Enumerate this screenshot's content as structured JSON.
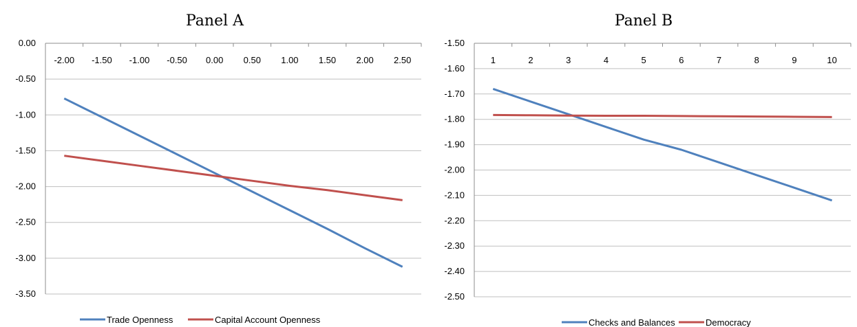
{
  "colors": {
    "blue": "#4F81BD",
    "red": "#C0504D",
    "grid": "#BFBFBF",
    "axis": "#8C8C8C"
  },
  "chart_data": [
    {
      "type": "line",
      "title": "Panel A",
      "xlabel": "",
      "ylabel": "",
      "categories": [
        "-2.00",
        "-1.50",
        "-1.00",
        "-0.50",
        "0.00",
        "0.50",
        "1.00",
        "1.50",
        "2.00",
        "2.50"
      ],
      "x": [
        -2.0,
        -1.5,
        -1.0,
        -0.5,
        0.0,
        0.5,
        1.0,
        1.5,
        2.0,
        2.5
      ],
      "y_ticks": [
        "0.00",
        "-0.50",
        "-1.00",
        "-1.50",
        "-2.00",
        "-2.50",
        "-3.00",
        "-3.50"
      ],
      "ylim": [
        -3.5,
        0.0
      ],
      "grid": true,
      "legend_position": "bottom",
      "x_axis_position": "top",
      "series": [
        {
          "name": "Trade Openness",
          "color": "#4F81BD",
          "values": [
            -0.77,
            -1.03,
            -1.29,
            -1.55,
            -1.81,
            -2.07,
            -2.33,
            -2.59,
            -2.86,
            -3.12
          ]
        },
        {
          "name": "Capital Account Openness",
          "color": "#C0504D",
          "values": [
            -1.57,
            -1.64,
            -1.71,
            -1.78,
            -1.85,
            -1.92,
            -1.99,
            -2.05,
            -2.12,
            -2.19
          ]
        }
      ]
    },
    {
      "type": "line",
      "title": "Panel B",
      "xlabel": "",
      "ylabel": "",
      "categories": [
        "1",
        "2",
        "3",
        "4",
        "5",
        "6",
        "7",
        "8",
        "9",
        "10"
      ],
      "x": [
        1,
        2,
        3,
        4,
        5,
        6,
        7,
        8,
        9,
        10
      ],
      "y_ticks": [
        "-1.50",
        "-1.60",
        "-1.70",
        "-1.80",
        "-1.90",
        "-2.00",
        "-2.10",
        "-2.20",
        "-2.30",
        "-2.40",
        "-2.50"
      ],
      "ylim": [
        -2.5,
        -1.5
      ],
      "grid": true,
      "legend_position": "bottom",
      "x_axis_position": "top",
      "series": [
        {
          "name": "Checks and Balances",
          "color": "#4F81BD",
          "values": [
            -1.68,
            -1.73,
            -1.78,
            -1.83,
            -1.88,
            -1.92,
            -1.97,
            -2.02,
            -2.07,
            -2.12
          ]
        },
        {
          "name": "Democracy",
          "color": "#C0504D",
          "values": [
            -1.783,
            -1.784,
            -1.785,
            -1.786,
            -1.786,
            -1.787,
            -1.788,
            -1.789,
            -1.79,
            -1.791
          ]
        }
      ]
    }
  ]
}
